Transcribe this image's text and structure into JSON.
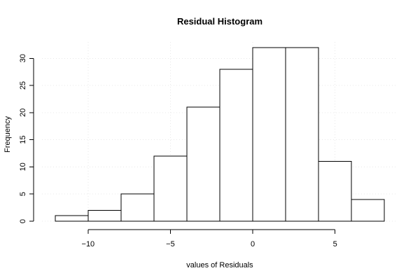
{
  "chart_data": {
    "type": "bar",
    "title": "Residual Histogram",
    "xlabel": "values of Residuals",
    "ylabel": "Frequency",
    "bin_edges": [
      -12,
      -10,
      -8,
      -6,
      -4,
      -2,
      0,
      2,
      4,
      6,
      8
    ],
    "values": [
      1,
      2,
      5,
      12,
      21,
      28,
      32,
      32,
      11,
      4
    ],
    "xlim": [
      -12.8,
      8.8
    ],
    "ylim": [
      0,
      33
    ],
    "x_ticks": [
      -10,
      -5,
      0,
      5
    ],
    "x_tick_labels": [
      "−10",
      "−5",
      "0",
      "5"
    ],
    "y_ticks": [
      0,
      5,
      10,
      15,
      20,
      25,
      30
    ],
    "y_tick_labels": [
      "0",
      "5",
      "10",
      "15",
      "20",
      "25",
      "30"
    ],
    "grid": true,
    "legend": "none"
  }
}
